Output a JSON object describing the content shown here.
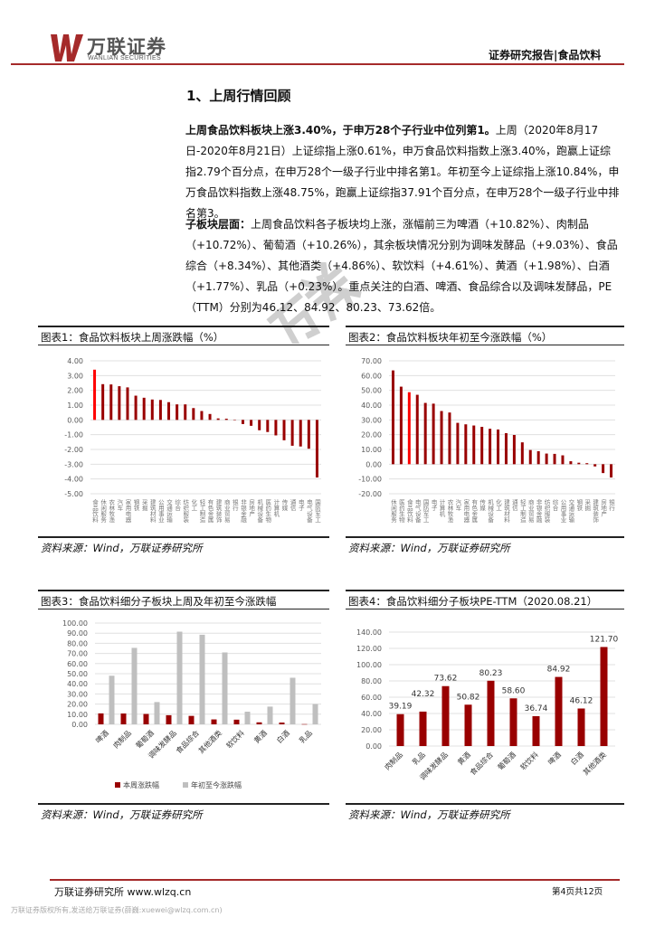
{
  "header": {
    "logo_cn": "万联证券",
    "logo_en": "WANLIAN SECURITIES",
    "report_type": "证券研究报告|食品饮料"
  },
  "watermark": "万券",
  "section": {
    "title": "1、上周行情回顾",
    "para1_bold": "上周食品饮料板块上涨3.40%，于申万28个子行业中位列第1。",
    "para1_rest": "上周（2020年8月17日-2020年8月21日）上证综指上涨0.61%，申万食品饮料指数上涨3.40%，跑赢上证综指2.79个百分点，在申万28个一级子行业中排名第1。年初至今上证综指上涨10.84%，申万食品饮料指数上涨48.75%，跑赢上证综指37.91个百分点，在申万28个一级子行业中排名第3。",
    "para2_bold": "子板块层面：",
    "para2_rest": "上周食品饮料各子板块均上涨，涨幅前三为啤酒（+10.82%）、肉制品（+10.72%）、葡萄酒（+10.26%），其余板块情况分别为调味发酵品（+9.03%）、食品综合（+8.34%）、其他酒类（+4.86%）、软饮料（+4.61%）、黄酒（+1.98%）、白酒（+1.77%）、乳品（+0.23%）。重点关注的白酒、啤酒、食品综合以及调味发酵品，PE（TTM）分别为46.12、84.92、80.23、73.62倍。"
  },
  "figures": {
    "fig1_title": "图表1：食品饮料板块上周涨跌幅（%）",
    "fig2_title": "图表2：食品饮料板块年初至今涨跌幅（%）",
    "fig3_title": "图表3：食品饮料细分子板块上周及年初至今涨跌幅",
    "fig4_title": "图表4：食品饮料细分子板块PE-TTM（2020.08.21）",
    "source": "资料来源：Wind，万联证券研究所"
  },
  "colors": {
    "bar": "#990000",
    "highlight": "#ff0000",
    "grey_bar": "#bfbfbf",
    "grid": "#e0e0e0",
    "brand": "#a52a2a"
  },
  "chart_data": [
    {
      "type": "bar",
      "ylim": [
        -5,
        4
      ],
      "yticks": [
        "4.00",
        "3.00",
        "2.00",
        "1.00",
        "0.00",
        "-1.00",
        "-2.00",
        "-3.00",
        "-4.00",
        "-5.00"
      ],
      "grid": true,
      "highlight_index": 0,
      "categories": [
        "食品饮料",
        "休闲服务",
        "农林牧渔",
        "汽车",
        "家用电器",
        "钢铁",
        "采掘",
        "建筑材料",
        "公用事业",
        "交通运输",
        "综合",
        "纺织服装",
        "化工",
        "轻工制造",
        "有色金属",
        "建筑装饰",
        "商业贸易",
        "银行",
        "非银金融",
        "房地产",
        "机械设备",
        "医药生物",
        "计算机",
        "传媒",
        "通信",
        "电子",
        "电气设备",
        "国防军工"
      ],
      "values": [
        3.4,
        2.42,
        2.4,
        2.28,
        2.2,
        1.64,
        1.5,
        1.38,
        1.35,
        1.2,
        1.05,
        1.05,
        0.8,
        0.6,
        0.4,
        0.1,
        0.08,
        0.02,
        -0.28,
        -0.4,
        -0.7,
        -0.82,
        -1.05,
        -1.38,
        -1.75,
        -1.8,
        -1.95,
        -3.9
      ]
    },
    {
      "type": "bar",
      "ylim": [
        -20,
        70
      ],
      "yticks": [
        "70.00",
        "60.00",
        "50.00",
        "40.00",
        "30.00",
        "20.00",
        "10.00",
        "0.00",
        "-10.00",
        "-20.00"
      ],
      "grid": true,
      "highlight_index": 2,
      "categories": [
        "休闲服务",
        "医药生物",
        "食品饮料",
        "电气设备",
        "国防军工",
        "电子",
        "计算机",
        "农林牧渔",
        "汽车",
        "家用电器",
        "有色金属",
        "传媒",
        "机械设备",
        "化工",
        "建筑材料",
        "通信",
        "轻工制造",
        "商业贸易",
        "非银金融",
        "纺织服装",
        "综合",
        "公用事业",
        "交通运输",
        "钢铁",
        "采掘",
        "建筑装饰",
        "房地产",
        "银行"
      ],
      "values": [
        63.5,
        52.5,
        48.75,
        47.0,
        41.5,
        41.0,
        36.0,
        35.0,
        28.0,
        27.0,
        26.2,
        25.3,
        24.0,
        23.5,
        21.0,
        19.8,
        14.8,
        9.6,
        8.8,
        7.2,
        7.0,
        6.0,
        2.0,
        1.0,
        0.7,
        -1.5,
        -6.0,
        -9.0
      ]
    },
    {
      "type": "bar",
      "ylim": [
        0,
        100
      ],
      "yticks": [
        "100.00",
        "90.00",
        "80.00",
        "70.00",
        "60.00",
        "50.00",
        "40.00",
        "30.00",
        "20.00",
        "10.00",
        "0.00"
      ],
      "grid": true,
      "legend": "bottom",
      "categories": [
        "啤酒",
        "肉制品",
        "葡萄酒",
        "调味发酵品",
        "食品综合",
        "其他酒类",
        "软饮料",
        "黄酒",
        "白酒",
        "乳品"
      ],
      "series": [
        {
          "name": "本周涨跌幅",
          "color": "#990000",
          "values": [
            10.82,
            10.72,
            10.26,
            9.03,
            8.34,
            4.86,
            4.61,
            1.98,
            1.77,
            0.23
          ]
        },
        {
          "name": "年初至今涨跌幅",
          "color": "#bfbfbf",
          "values": [
            48.0,
            75.5,
            22.0,
            91.5,
            88.5,
            71.0,
            12.5,
            17.5,
            46.0,
            20.0
          ]
        }
      ]
    },
    {
      "type": "bar",
      "ylim": [
        0,
        140
      ],
      "yticks": [
        "140.00",
        "120.00",
        "100.00",
        "80.00",
        "60.00",
        "40.00",
        "20.00",
        "0.00"
      ],
      "grid": true,
      "categories": [
        "肉制品",
        "乳品",
        "调味发酵品",
        "黄酒",
        "食品综合",
        "葡萄酒",
        "软饮料",
        "啤酒",
        "白酒",
        "其他酒类"
      ],
      "values": [
        39.19,
        42.32,
        73.62,
        50.82,
        80.23,
        58.6,
        36.74,
        84.92,
        46.12,
        121.7
      ],
      "data_labels": [
        "39.19",
        "42.32",
        "73.62",
        "50.82",
        "80.23",
        "58.60",
        "36.74",
        "84.92",
        "46.12",
        "121.70"
      ]
    }
  ],
  "footer": {
    "left": "万联证券研究所 www.wlzq.cn",
    "page": "第4页共12页",
    "copyright": "万联证券版权所有,发送给万联证券(薛巍:xuewei@wlzq.com.cn)"
  }
}
